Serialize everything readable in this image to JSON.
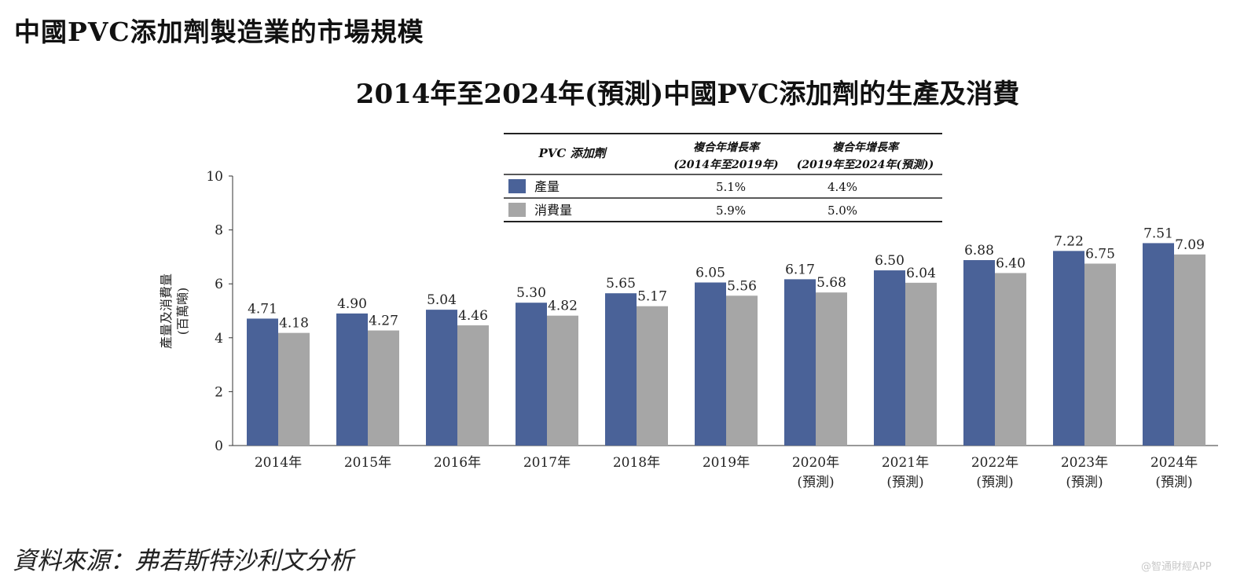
{
  "page": {
    "section_title": "中國PVC添加劑製造業的市場規模",
    "source": "資料來源：弗若斯特沙利文分析",
    "watermark": "@智通財經APP"
  },
  "cagr_table": {
    "header_label": "PVC 添加劑",
    "col1_line1": "複合年增長率",
    "col1_line2": "(2014年至2019年)",
    "col2_line1": "複合年增長率",
    "col2_line2": "(2019年至2024年(預測))",
    "rows": [
      {
        "name": "產量",
        "color": "#4a6298",
        "c1": "5.1%",
        "c2": "4.4%"
      },
      {
        "name": "消費量",
        "color": "#a6a6a6",
        "c1": "5.9%",
        "c2": "5.0%"
      }
    ]
  },
  "chart_data": {
    "type": "bar",
    "title": "2014年至2024年(預測)中國PVC添加劑的生產及消費",
    "ylabel": "產量及消費量",
    "ylabel_unit": "(百萬噸)",
    "ylim": [
      0,
      10
    ],
    "yticks": [
      "0",
      "2",
      "4",
      "6",
      "8",
      "10"
    ],
    "grid": false,
    "categories": [
      [
        "2014年"
      ],
      [
        "2015年"
      ],
      [
        "2016年"
      ],
      [
        "2017年"
      ],
      [
        "2018年"
      ],
      [
        "2019年"
      ],
      [
        "2020年",
        "(預測)"
      ],
      [
        "2021年",
        "(預測)"
      ],
      [
        "2022年",
        "(預測)"
      ],
      [
        "2023年",
        "(預測)"
      ],
      [
        "2024年",
        "(預測)"
      ]
    ],
    "series": [
      {
        "name": "產量",
        "color": "#4a6298",
        "values": [
          4.71,
          4.9,
          5.04,
          5.3,
          5.65,
          6.05,
          6.17,
          6.5,
          6.88,
          7.22,
          7.51
        ],
        "labels": [
          "4.71",
          "4.90",
          "5.04",
          "5.30",
          "5.65",
          "6.05",
          "6.17",
          "6.50",
          "6.88",
          "7.22",
          "7.51"
        ]
      },
      {
        "name": "消費量",
        "color": "#a6a6a6",
        "values": [
          4.18,
          4.27,
          4.46,
          4.82,
          5.17,
          5.56,
          5.68,
          6.04,
          6.4,
          6.75,
          7.09
        ],
        "labels": [
          "4.18",
          "4.27",
          "4.46",
          "4.82",
          "5.17",
          "5.56",
          "5.68",
          "6.04",
          "6.40",
          "6.75",
          "7.09"
        ]
      }
    ]
  }
}
